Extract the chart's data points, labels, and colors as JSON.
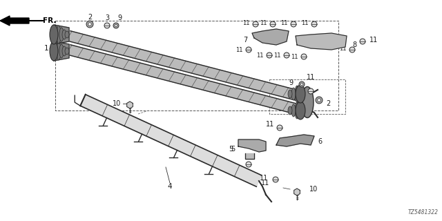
{
  "bg_color": "#ffffff",
  "part_number": "TZ5481322",
  "line_color": "#2a2a2a",
  "text_color": "#1a1a1a",
  "gray_fill": "#888888",
  "light_gray": "#cccccc",
  "mid_gray": "#999999"
}
